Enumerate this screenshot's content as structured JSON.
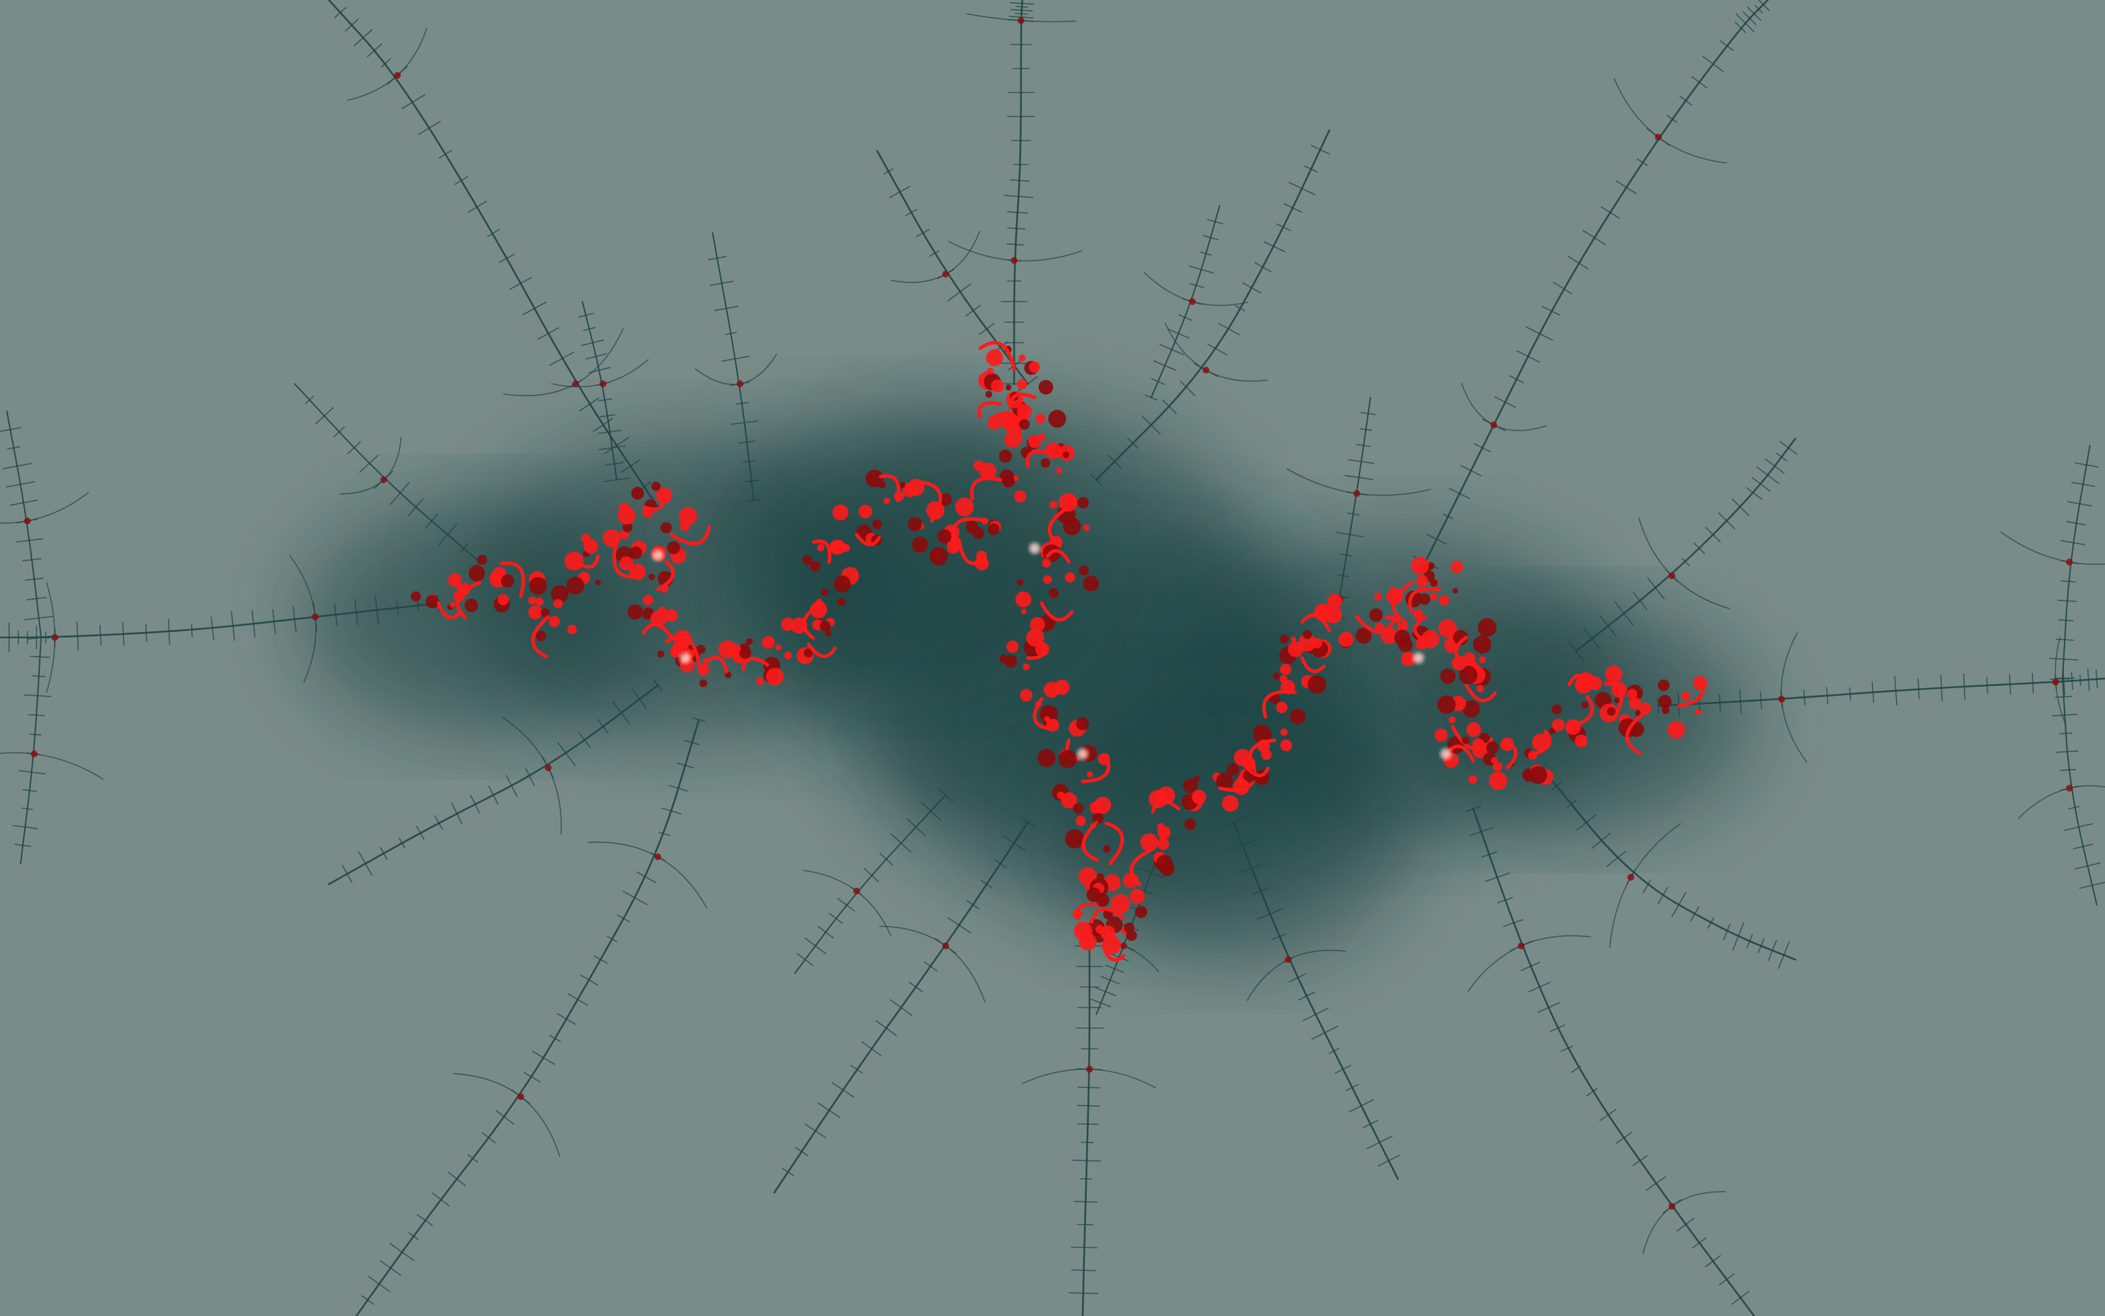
{
  "scene": {
    "subject": "julia-set-fractal",
    "colors": {
      "background_light": "#7a8c89",
      "background_mid": "#5f7b78",
      "background_dark": "#123f40",
      "filament": "#1f4546",
      "fractal_red": "#ff1a1a",
      "fractal_dark_red": "#8c0a0a",
      "fractal_core": "#ffd0c8"
    }
  }
}
